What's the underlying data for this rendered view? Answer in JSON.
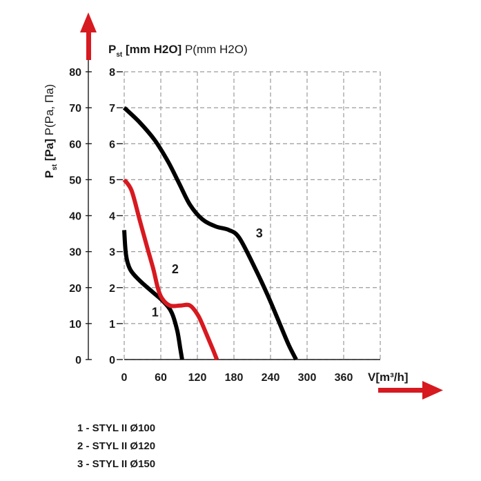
{
  "chart_data": {
    "type": "line",
    "left_axis_title": "P",
    "left_axis_title_sub": "st",
    "left_axis_title_unit": "[Pa]",
    "left_axis_title_alt": "P(Pa, Па)",
    "top_axis_title": "P",
    "top_axis_title_sub": "st",
    "top_axis_title_unit": "[mm H2O]",
    "top_axis_title_alt": "P(mm H2O)",
    "xlabel": "V[m³/h]",
    "x_ticks": [
      "0",
      "60",
      "120",
      "180",
      "240",
      "300",
      "360"
    ],
    "x_max": 420,
    "y_pa_ticks": [
      "0",
      "10",
      "20",
      "30",
      "40",
      "50",
      "60",
      "70",
      "80"
    ],
    "y_mm_ticks": [
      "0",
      "1",
      "2",
      "3",
      "4",
      "5",
      "6",
      "7",
      "8"
    ],
    "y_max_pa": 80,
    "grid": true,
    "series": [
      {
        "label": "1",
        "color": "#000000",
        "points": [
          [
            0,
            36
          ],
          [
            3,
            29
          ],
          [
            10,
            25
          ],
          [
            25,
            22
          ],
          [
            45,
            19
          ],
          [
            65,
            16
          ],
          [
            78,
            13
          ],
          [
            87,
            8
          ],
          [
            92,
            3
          ],
          [
            95,
            0
          ]
        ],
        "label_at": [
          45,
          12
        ]
      },
      {
        "label": "2",
        "color": "#d71920",
        "points": [
          [
            0,
            50
          ],
          [
            12,
            47
          ],
          [
            25,
            39
          ],
          [
            38,
            31
          ],
          [
            48,
            25
          ],
          [
            55,
            20
          ],
          [
            62,
            17
          ],
          [
            75,
            15
          ],
          [
            92,
            15
          ],
          [
            108,
            15
          ],
          [
            122,
            12
          ],
          [
            135,
            7
          ],
          [
            145,
            3
          ],
          [
            152,
            0
          ]
        ],
        "label_at": [
          78,
          24
        ]
      },
      {
        "label": "3",
        "color": "#000000",
        "points": [
          [
            0,
            70
          ],
          [
            25,
            66
          ],
          [
            50,
            61
          ],
          [
            72,
            55
          ],
          [
            90,
            49
          ],
          [
            108,
            43
          ],
          [
            128,
            39
          ],
          [
            150,
            37
          ],
          [
            172,
            36
          ],
          [
            188,
            34
          ],
          [
            210,
            27
          ],
          [
            235,
            18
          ],
          [
            255,
            10
          ],
          [
            270,
            4
          ],
          [
            282,
            0
          ]
        ],
        "label_at": [
          216,
          34
        ]
      }
    ],
    "legend": [
      "1 - STYL II Ø100",
      "2 - STYL II Ø120",
      "3 - STYL II Ø150"
    ],
    "arrow_color": "#d71920"
  }
}
